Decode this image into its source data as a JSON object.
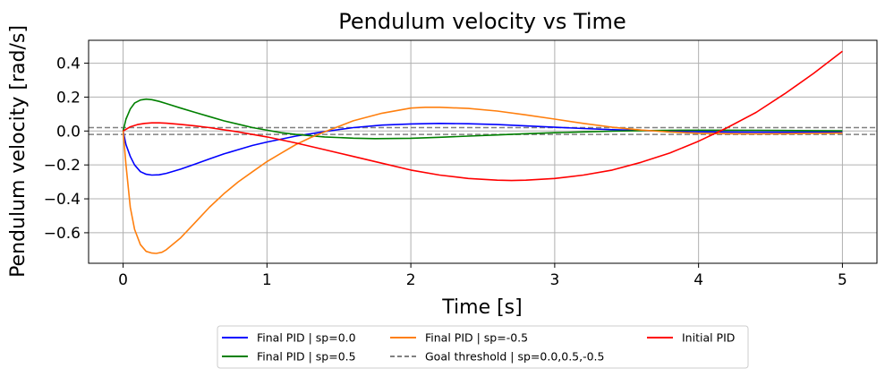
{
  "chart_data": {
    "type": "line",
    "title": "Pendulum velocity vs Time",
    "xlabel": "Time [s]",
    "ylabel": "Pendulum velocity [rad/s]",
    "xlim": [
      -0.24,
      5.24
    ],
    "ylim": [
      -0.78,
      0.535
    ],
    "xticks": [
      0,
      1,
      2,
      3,
      4,
      5
    ],
    "yticks": [
      -0.6,
      -0.4,
      -0.2,
      0.0,
      0.2,
      0.4
    ],
    "xtick_labels": [
      "0",
      "1",
      "2",
      "3",
      "4",
      "5"
    ],
    "ytick_labels": [
      "−0.6",
      "−0.4",
      "−0.2",
      "0.0",
      "0.2",
      "0.4"
    ],
    "grid": true,
    "legend_position": "below-center",
    "thresholds": [
      0.02,
      -0.02
    ],
    "series": [
      {
        "name": "Final PID | sp=0.0",
        "color": "#0000ff",
        "style": "solid",
        "x": [
          0,
          0.02,
          0.05,
          0.08,
          0.12,
          0.16,
          0.2,
          0.25,
          0.3,
          0.4,
          0.5,
          0.6,
          0.7,
          0.8,
          0.9,
          1.0,
          1.2,
          1.4,
          1.6,
          1.8,
          2.0,
          2.2,
          2.4,
          2.6,
          2.8,
          3.0,
          3.2,
          3.4,
          3.6,
          3.8,
          4.0,
          4.2,
          4.4,
          4.6,
          4.8,
          5.0
        ],
        "y": [
          0,
          -0.08,
          -0.15,
          -0.2,
          -0.24,
          -0.255,
          -0.26,
          -0.258,
          -0.25,
          -0.225,
          -0.195,
          -0.165,
          -0.135,
          -0.11,
          -0.085,
          -0.065,
          -0.03,
          -0.003,
          0.02,
          0.035,
          0.042,
          0.045,
          0.043,
          0.038,
          0.03,
          0.022,
          0.015,
          0.008,
          0.003,
          -0.001,
          -0.004,
          -0.006,
          -0.007,
          -0.007,
          -0.006,
          -0.005
        ]
      },
      {
        "name": "Final PID | sp=0.5",
        "color": "#008000",
        "style": "solid",
        "x": [
          0,
          0.02,
          0.05,
          0.08,
          0.12,
          0.16,
          0.2,
          0.25,
          0.3,
          0.4,
          0.5,
          0.6,
          0.7,
          0.8,
          0.9,
          1.0,
          1.1,
          1.2,
          1.4,
          1.6,
          1.75,
          2.0,
          2.2,
          2.4,
          2.6,
          2.8,
          3.0,
          3.2,
          3.4,
          3.6,
          3.8,
          4.0,
          4.2,
          4.4,
          4.6,
          4.8,
          5.0
        ],
        "y": [
          0,
          0.07,
          0.13,
          0.165,
          0.183,
          0.188,
          0.185,
          0.175,
          0.162,
          0.135,
          0.11,
          0.085,
          0.06,
          0.04,
          0.02,
          0.005,
          -0.01,
          -0.02,
          -0.035,
          -0.042,
          -0.045,
          -0.043,
          -0.037,
          -0.03,
          -0.023,
          -0.016,
          -0.01,
          -0.005,
          -0.001,
          0.002,
          0.004,
          0.005,
          0.005,
          0.004,
          0.003,
          0.002,
          0.001
        ]
      },
      {
        "name": "Final PID | sp=-0.5",
        "color": "#ff7f0e",
        "style": "solid",
        "x": [
          0,
          0.02,
          0.05,
          0.08,
          0.12,
          0.16,
          0.2,
          0.23,
          0.27,
          0.3,
          0.4,
          0.5,
          0.6,
          0.7,
          0.8,
          0.9,
          1.0,
          1.1,
          1.2,
          1.3,
          1.4,
          1.6,
          1.8,
          2.0,
          2.1,
          2.2,
          2.4,
          2.6,
          2.8,
          3.0,
          3.2,
          3.4,
          3.6,
          3.8,
          4.0,
          4.2,
          4.4,
          4.6,
          4.8,
          5.0
        ],
        "y": [
          0,
          -0.2,
          -0.45,
          -0.58,
          -0.67,
          -0.71,
          -0.72,
          -0.722,
          -0.715,
          -0.7,
          -0.63,
          -0.54,
          -0.45,
          -0.37,
          -0.3,
          -0.24,
          -0.18,
          -0.13,
          -0.08,
          -0.04,
          -0.005,
          0.06,
          0.105,
          0.135,
          0.14,
          0.14,
          0.133,
          0.118,
          0.095,
          0.07,
          0.045,
          0.022,
          0.006,
          -0.006,
          -0.013,
          -0.016,
          -0.017,
          -0.016,
          -0.014,
          -0.012
        ]
      },
      {
        "name": "Goal threshold | sp=0.0,0.5,-0.5",
        "color": "#808080",
        "style": "dashed"
      },
      {
        "name": "Initial PID",
        "color": "#ff0000",
        "style": "solid",
        "x": [
          0,
          0.05,
          0.1,
          0.15,
          0.2,
          0.25,
          0.3,
          0.4,
          0.5,
          0.6,
          0.8,
          1.0,
          1.2,
          1.4,
          1.6,
          1.8,
          2.0,
          2.2,
          2.4,
          2.6,
          2.7,
          2.8,
          3.0,
          3.2,
          3.4,
          3.6,
          3.8,
          4.0,
          4.2,
          4.4,
          4.6,
          4.8,
          5.0
        ],
        "y": [
          0,
          0.025,
          0.038,
          0.045,
          0.048,
          0.048,
          0.046,
          0.039,
          0.03,
          0.02,
          -0.005,
          -0.035,
          -0.07,
          -0.11,
          -0.15,
          -0.19,
          -0.23,
          -0.26,
          -0.28,
          -0.29,
          -0.292,
          -0.29,
          -0.28,
          -0.26,
          -0.23,
          -0.185,
          -0.13,
          -0.06,
          0.02,
          0.11,
          0.22,
          0.34,
          0.47
        ]
      }
    ]
  }
}
